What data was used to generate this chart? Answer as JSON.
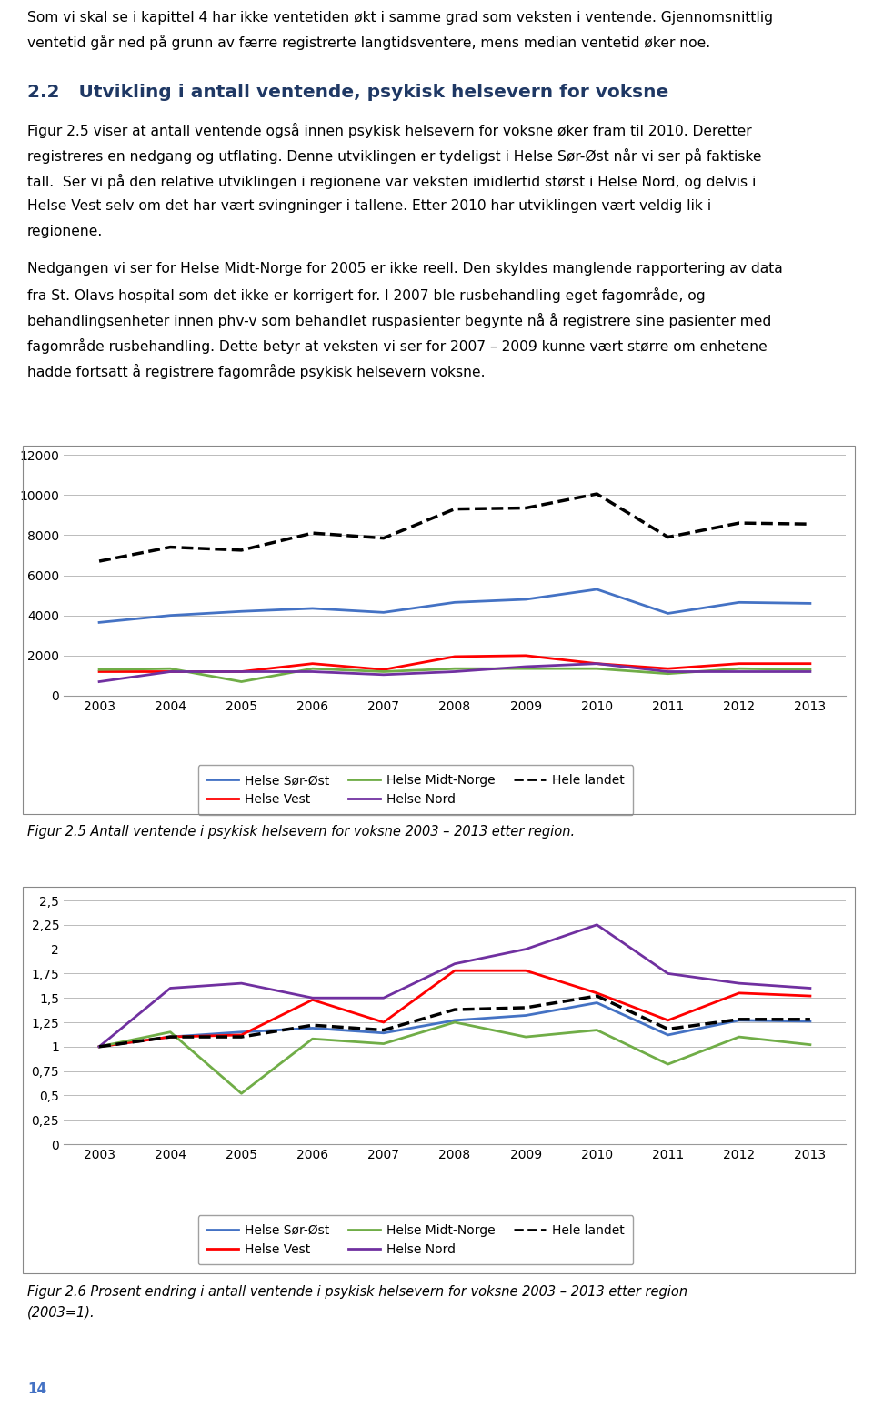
{
  "years": [
    2003,
    2004,
    2005,
    2006,
    2007,
    2008,
    2009,
    2010,
    2011,
    2012,
    2013
  ],
  "chart1": {
    "ylim": [
      0,
      12000
    ],
    "yticks": [
      0,
      2000,
      4000,
      6000,
      8000,
      10000,
      12000
    ],
    "series": {
      "Helse Sør-Øst": {
        "values": [
          3650,
          4000,
          4200,
          4350,
          4150,
          4650,
          4800,
          5300,
          4100,
          4650,
          4600
        ],
        "color": "#4472C4",
        "linestyle": "solid",
        "linewidth": 2.0
      },
      "Helse Vest": {
        "values": [
          1200,
          1200,
          1200,
          1600,
          1300,
          1950,
          2000,
          1600,
          1350,
          1600,
          1600
        ],
        "color": "#FF0000",
        "linestyle": "solid",
        "linewidth": 2.0
      },
      "Helse Midt-Norge": {
        "values": [
          1300,
          1350,
          700,
          1350,
          1200,
          1350,
          1350,
          1350,
          1100,
          1350,
          1300
        ],
        "color": "#70AD47",
        "linestyle": "solid",
        "linewidth": 2.0
      },
      "Helse Nord": {
        "values": [
          700,
          1200,
          1200,
          1200,
          1050,
          1200,
          1450,
          1600,
          1200,
          1200,
          1200
        ],
        "color": "#7030A0",
        "linestyle": "solid",
        "linewidth": 2.0
      },
      "Hele landet": {
        "values": [
          6700,
          7400,
          7250,
          8100,
          7850,
          9300,
          9350,
          10050,
          7900,
          8600,
          8550
        ],
        "color": "#000000",
        "linestyle": "dashed",
        "linewidth": 2.5
      }
    }
  },
  "chart2": {
    "ylim": [
      0,
      2.5
    ],
    "yticks": [
      0,
      0.25,
      0.5,
      0.75,
      1.0,
      1.25,
      1.5,
      1.75,
      2.0,
      2.25,
      2.5
    ],
    "ytick_labels": [
      "0",
      "0,25",
      "0,5",
      "0,75",
      "1",
      "1,25",
      "1,5",
      "1,75",
      "2",
      "2,25",
      "2,5"
    ],
    "series": {
      "Helse Sør-Øst": {
        "values": [
          1.0,
          1.1,
          1.15,
          1.19,
          1.14,
          1.27,
          1.32,
          1.45,
          1.12,
          1.27,
          1.26
        ],
        "color": "#4472C4",
        "linestyle": "solid",
        "linewidth": 2.0
      },
      "Helse Vest": {
        "values": [
          1.0,
          1.1,
          1.12,
          1.48,
          1.25,
          1.78,
          1.78,
          1.55,
          1.27,
          1.55,
          1.52
        ],
        "color": "#FF0000",
        "linestyle": "solid",
        "linewidth": 2.0
      },
      "Helse Midt-Norge": {
        "values": [
          1.0,
          1.15,
          0.52,
          1.08,
          1.03,
          1.25,
          1.1,
          1.17,
          0.82,
          1.1,
          1.02
        ],
        "color": "#70AD47",
        "linestyle": "solid",
        "linewidth": 2.0
      },
      "Helse Nord": {
        "values": [
          1.0,
          1.6,
          1.65,
          1.5,
          1.5,
          1.85,
          2.0,
          2.25,
          1.75,
          1.65,
          1.6
        ],
        "color": "#7030A0",
        "linestyle": "solid",
        "linewidth": 2.0
      },
      "Hele landet": {
        "values": [
          1.0,
          1.1,
          1.1,
          1.22,
          1.17,
          1.38,
          1.4,
          1.52,
          1.18,
          1.28,
          1.28
        ],
        "color": "#000000",
        "linestyle": "dashed",
        "linewidth": 2.5
      }
    }
  },
  "intro_line1": "Som vi skal se i kapittel 4 har ikke ventetiden økt i samme grad som veksten i ventende. Gjennomsnittlig",
  "intro_line2": "ventetid går ned på grunn av færre registrerte langtidsventere, mens median ventetid øker noe.",
  "heading": "2.2   Utvikling i antall ventende, psykisk helsevern for voksne",
  "para1_lines": [
    "Figur 2.5 viser at antall ventende også innen psykisk helsevern for voksne øker fram til 2010. Deretter",
    "registreres en nedgang og utflating. Denne utviklingen er tydeligst i Helse Sør-Øst når vi ser på faktiske",
    "tall.  Ser vi på den relative utviklingen i regionene var veksten imidlertid størst i Helse Nord, og delvis i",
    "Helse Vest selv om det har vært svingninger i tallene. Etter 2010 har utviklingen vært veldig lik i",
    "regionene."
  ],
  "para2_lines": [
    "Nedgangen vi ser for Helse Midt-Norge for 2005 er ikke reell. Den skyldes manglende rapportering av data",
    "fra St. Olavs hospital som det ikke er korrigert for. I 2007 ble rusbehandling eget fagområde, og",
    "behandlingsenheter innen phv-v som behandlet ruspasienter begynte nå å registrere sine pasienter med",
    "fagområde rusbehandling. Dette betyr at veksten vi ser for 2007 – 2009 kunne vært større om enhetene",
    "hadde fortsatt å registrere fagområde psykisk helsevern voksne."
  ],
  "fig1_caption": "Figur 2.5 Antall ventende i psykisk helsevern for voksne 2003 – 2013 etter region.",
  "fig2_caption_line1": "Figur 2.6 Prosent endring i antall ventende i psykisk helsevern for voksne 2003 – 2013 etter region",
  "fig2_caption_line2": "(2003=1).",
  "page_number": "14",
  "legend_labels": [
    "Helse Sør-Øst",
    "Helse Vest",
    "Helse Midt-Norge",
    "Helse Nord",
    "Hele landet"
  ],
  "legend_colors": [
    "#4472C4",
    "#FF0000",
    "#70AD47",
    "#7030A0",
    "#000000"
  ],
  "legend_linestyles": [
    "solid",
    "solid",
    "solid",
    "solid",
    "dashed"
  ]
}
